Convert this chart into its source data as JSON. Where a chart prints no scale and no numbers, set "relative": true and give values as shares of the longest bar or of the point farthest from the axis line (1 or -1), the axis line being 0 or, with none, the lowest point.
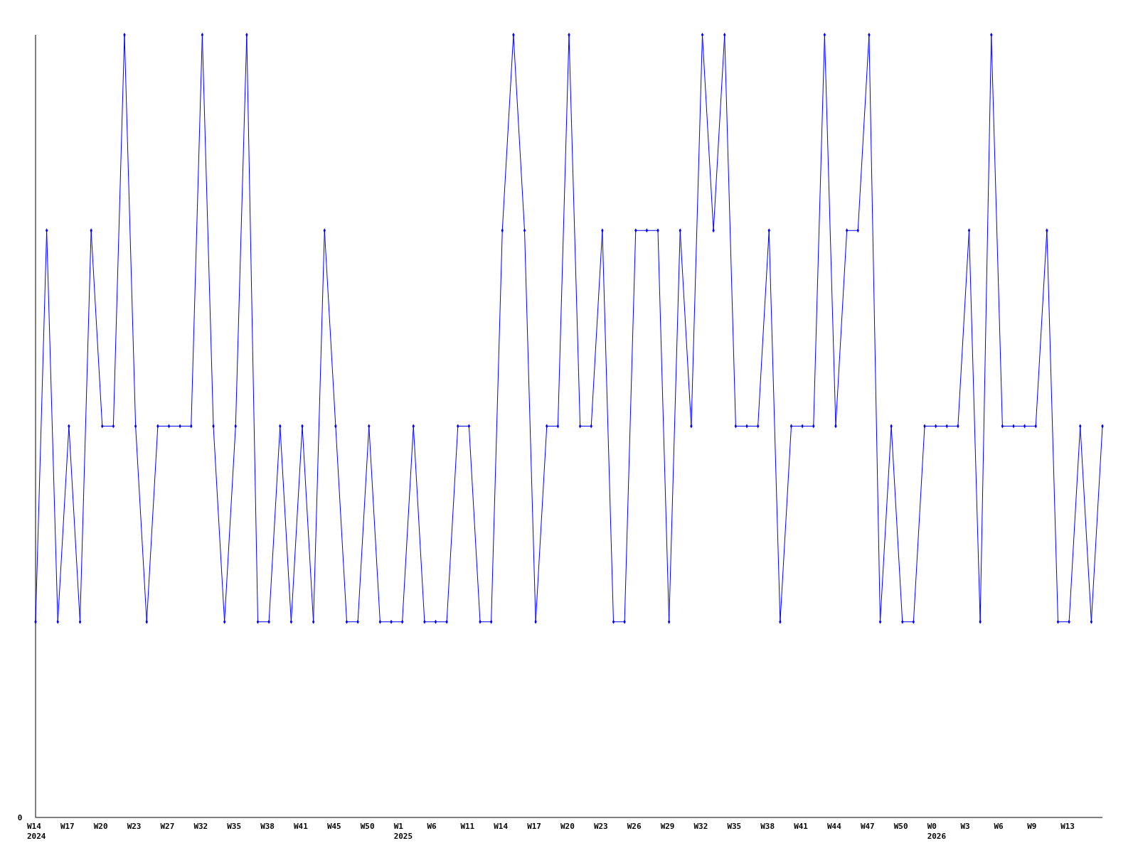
{
  "chart_data": {
    "type": "line",
    "relative": true,
    "marker": "diamond",
    "line_style": "solid",
    "annotations": [
      "0"
    ],
    "categories": [
      "W14\n2024",
      null,
      null,
      "W17",
      null,
      null,
      "W20",
      null,
      null,
      "W23",
      null,
      null,
      "W27",
      null,
      null,
      "W32",
      null,
      null,
      "W35",
      null,
      null,
      "W38",
      null,
      null,
      "W41",
      null,
      null,
      "W45",
      null,
      null,
      "W50",
      null,
      null,
      "W1\n2025",
      null,
      null,
      "W6",
      null,
      null,
      "W11",
      null,
      null,
      "W14",
      null,
      null,
      "W17",
      null,
      null,
      "W20",
      null,
      null,
      "W23",
      null,
      null,
      "W26",
      null,
      null,
      "W29",
      null,
      null,
      "W32",
      null,
      null,
      "W35",
      null,
      null,
      "W38",
      null,
      null,
      "W41",
      null,
      null,
      "W44",
      null,
      null,
      "W47",
      null,
      null,
      "W50",
      null,
      null,
      "W0\n2026",
      null,
      null,
      "W3",
      null,
      null,
      "W6",
      null,
      null,
      "W9",
      null,
      null,
      "W13",
      null,
      null,
      null
    ],
    "series": [
      {
        "color": "#0000ff",
        "values": [
          0.25,
          0.75,
          0.25,
          0.5,
          0.25,
          0.75,
          0.5,
          0.5,
          1,
          0.5,
          0.25,
          0.5,
          0.5,
          0.5,
          0.5,
          1,
          0.5,
          0.25,
          0.5,
          1,
          0.25,
          0.25,
          0.5,
          0.25,
          0.5,
          0.25,
          0.75,
          0.5,
          0.25,
          0.25,
          0.5,
          0.25,
          0.25,
          0.25,
          0.5,
          0.25,
          0.25,
          0.25,
          0.5,
          0.5,
          0.25,
          0.25,
          0.75,
          1,
          0.75,
          0.25,
          0.5,
          0.5,
          1,
          0.5,
          0.5,
          0.75,
          0.25,
          0.25,
          0.75,
          0.75,
          0.75,
          0.25,
          0.75,
          0.5,
          1,
          0.75,
          1,
          0.5,
          0.5,
          0.5,
          0.75,
          0.25,
          0.5,
          0.5,
          0.5,
          1,
          0.5,
          0.75,
          0.75,
          1,
          0.25,
          0.5,
          0.25,
          0.25,
          0.5,
          0.5,
          0.5,
          0.5,
          0.75,
          0.25,
          1,
          0.5,
          0.5,
          0.5,
          0.5,
          0.75,
          0.25,
          0.25,
          0.5,
          0.25,
          0.5
        ]
      }
    ]
  }
}
